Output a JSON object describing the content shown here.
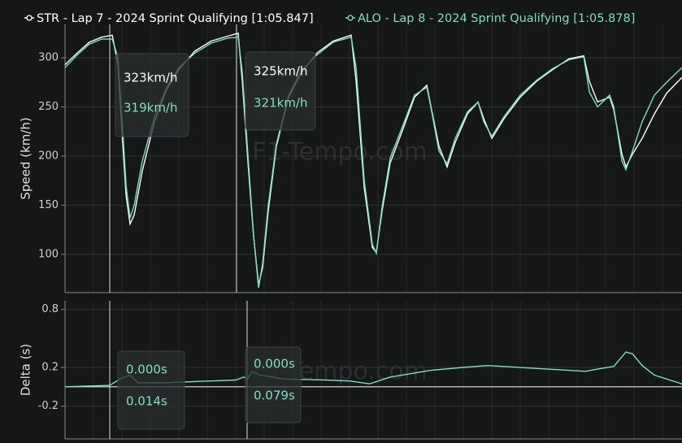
{
  "chart_data": [
    {
      "type": "line",
      "y_label": "Speed (km/h)",
      "watermark": "F1-Tempo.com",
      "x": [
        0,
        86,
        171,
        257,
        331,
        371,
        399,
        428,
        456,
        485,
        542,
        627,
        713,
        798,
        912,
        1026,
        1140,
        1214,
        1243,
        1283,
        1322,
        1357,
        1385,
        1425,
        1482,
        1568,
        1653,
        1767,
        1881,
        2006,
        2041,
        2098,
        2155,
        2183,
        2223,
        2280,
        2366,
        2451,
        2537,
        2565,
        2622,
        2679,
        2736,
        2822,
        2896,
        2936,
        2993,
        3078,
        3192,
        3306,
        3420,
        3534,
        3637,
        3677,
        3734,
        3819,
        3848,
        3905,
        3933,
        3979,
        4047,
        4133,
        4218,
        4326
      ],
      "xlim": [
        0,
        4326
      ],
      "ylim": [
        61,
        334
      ],
      "yticks": [
        100,
        150,
        200,
        250,
        300
      ],
      "grid": true,
      "series": [
        {
          "name": "STR - Lap 7 - 2024 Sprint Qualifying [1:05.847]",
          "color": "#ffffff",
          "values": [
            293,
            305,
            316,
            321,
            323,
            293,
            226,
            160,
            131,
            140,
            185,
            235,
            268,
            288,
            307,
            317,
            322,
            325,
            276,
            193,
            119,
            69,
            86,
            144,
            210,
            260,
            284,
            305,
            317,
            323,
            276,
            168,
            107,
            102,
            144,
            193,
            226,
            260,
            272,
            251,
            210,
            189,
            214,
            243,
            255,
            238,
            218,
            238,
            260,
            276,
            288,
            299,
            302,
            276,
            255,
            260,
            247,
            202,
            189,
            202,
            218,
            243,
            264,
            280
          ]
        },
        {
          "name": "ALO - Lap 8 - 2024 Sprint Qualifying [1:05.878]",
          "color": "#7de0c0",
          "values": [
            290,
            303,
            314,
            319,
            319,
            300,
            240,
            170,
            137,
            150,
            195,
            240,
            270,
            290,
            305,
            315,
            320,
            321,
            285,
            200,
            120,
            66,
            90,
            150,
            212,
            262,
            286,
            303,
            316,
            321,
            290,
            175,
            110,
            101,
            148,
            198,
            230,
            262,
            270,
            250,
            205,
            192,
            218,
            245,
            255,
            235,
            220,
            240,
            262,
            277,
            289,
            298,
            301,
            265,
            250,
            262,
            250,
            195,
            186,
            205,
            235,
            262,
            275,
            290
          ]
        }
      ],
      "annotations": [
        [
          "323km/h",
          "319km/h"
        ],
        [
          "325km/h",
          "321km/h"
        ]
      ]
    },
    {
      "type": "line",
      "y_label": "Delta (s)",
      "watermark": "F1-Tempo.com",
      "x": [
        0,
        313,
        398,
        456,
        513,
        684,
        1197,
        1254,
        1277,
        1311,
        1368,
        1539,
        1824,
        1995,
        2137,
        2280,
        2565,
        2793,
        2964,
        3534,
        3648,
        3762,
        3848,
        3933,
        3979,
        4047,
        4133,
        4326
      ],
      "xlim": [
        0,
        4326
      ],
      "ylim": [
        -0.54,
        0.89
      ],
      "yticks": [
        -0.2,
        0.2,
        0.8
      ],
      "grid": true,
      "series": [
        {
          "color": "#7de0c0",
          "values": [
            0,
            0.014,
            0.09,
            0.12,
            0.04,
            0.04,
            0.07,
            0.1,
            0.079,
            0.155,
            0.12,
            0.08,
            0.07,
            0.06,
            0.03,
            0.1,
            0.17,
            0.2,
            0.22,
            0.17,
            0.16,
            0.19,
            0.21,
            0.36,
            0.34,
            0.22,
            0.12,
            0.03
          ]
        }
      ],
      "annotations": [
        [
          "0.000s",
          "0.014s"
        ],
        [
          "0.000s",
          "0.079s"
        ]
      ]
    }
  ]
}
